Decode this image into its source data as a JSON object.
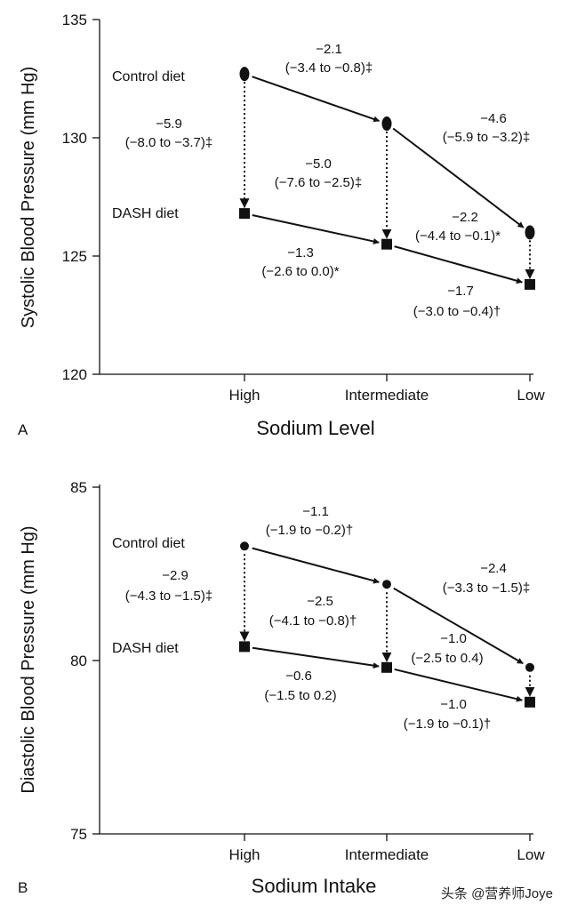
{
  "chart_data": [
    {
      "type": "line",
      "panel_label": "A",
      "ylabel": "Systolic Blood Pressure (mm Hg)",
      "xlabel": "Sodium Level",
      "categories": [
        "High",
        "Intermediate",
        "Low"
      ],
      "ylim": [
        120,
        135
      ],
      "yticks": [
        "120",
        "125",
        "130",
        "135"
      ],
      "grid": false,
      "series": [
        {
          "name": "Control diet",
          "marker": "ellipse",
          "values": [
            132.7,
            130.6,
            126.0
          ]
        },
        {
          "name": "DASH diet",
          "marker": "square",
          "values": [
            126.8,
            125.5,
            123.8
          ]
        }
      ],
      "annotations": {
        "control_high_int": [
          "−2.1",
          "(−3.4 to −0.8)‡"
        ],
        "control_int_low": [
          "−4.6",
          "(−5.9 to −3.2)‡"
        ],
        "dash_high_int": [
          "−1.3",
          "(−2.6 to 0.0)*"
        ],
        "dash_int_low": [
          "−1.7",
          "(−3.0 to −0.4)†"
        ],
        "diff_high": [
          "−5.9",
          "(−8.0 to −3.7)‡"
        ],
        "diff_int": [
          "−5.0",
          "(−7.6 to −2.5)‡"
        ],
        "diff_low": [
          "−2.2",
          "(−4.4 to −0.1)*"
        ]
      }
    },
    {
      "type": "line",
      "panel_label": "B",
      "ylabel": "Diastolic Blood Pressure (mm Hg)",
      "xlabel": "Sodium Intake",
      "categories": [
        "High",
        "Intermediate",
        "Low"
      ],
      "ylim": [
        75,
        85
      ],
      "yticks": [
        "75",
        "80",
        "85"
      ],
      "grid": false,
      "series": [
        {
          "name": "Control diet",
          "marker": "circle",
          "values": [
            83.3,
            82.2,
            79.8
          ]
        },
        {
          "name": "DASH diet",
          "marker": "square",
          "values": [
            80.4,
            79.8,
            78.8
          ]
        }
      ],
      "annotations": {
        "control_high_int": [
          "−1.1",
          "(−1.9 to −0.2)†"
        ],
        "control_int_low": [
          "−2.4",
          "(−3.3 to −1.5)‡"
        ],
        "dash_high_int": [
          "−0.6",
          "(−1.5 to 0.2)"
        ],
        "dash_int_low": [
          "−1.0",
          "(−1.9 to −0.1)†"
        ],
        "diff_high": [
          "−2.9",
          "(−4.3 to −1.5)‡"
        ],
        "diff_int": [
          "−2.5",
          "(−4.1 to −0.8)†"
        ],
        "diff_low": [
          "−1.0",
          "(−2.5 to 0.4)"
        ]
      }
    }
  ],
  "watermark": "头条 @营养师Joye"
}
